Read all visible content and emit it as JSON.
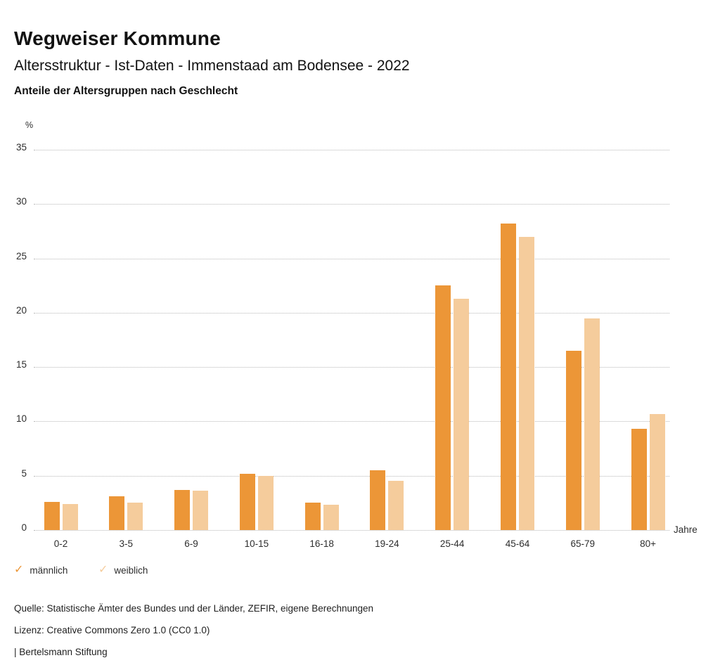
{
  "header": {
    "title": "Wegweiser Kommune",
    "subtitle": "Altersstruktur - Ist-Daten - Immenstaad am Bodensee - 2022",
    "chart_heading": "Anteile der Altersgruppen nach Geschlecht"
  },
  "icons": {
    "checkmark": "✓"
  },
  "chart_data": {
    "type": "bar",
    "title": "Anteile der Altersgruppen nach Geschlecht",
    "y_axis_unit": "%",
    "x_axis_unit": "Jahre",
    "ylim": [
      0,
      35
    ],
    "ytick_step": 5,
    "grid": "horizontal-dotted",
    "legend_position": "bottom-left",
    "categories": [
      "0-2",
      "3-5",
      "6-9",
      "10-15",
      "16-18",
      "19-24",
      "25-44",
      "45-64",
      "65-79",
      "80+"
    ],
    "series": [
      {
        "name": "männlich",
        "color": "#EC9637",
        "values": [
          2.6,
          3.1,
          3.7,
          5.2,
          2.5,
          5.5,
          22.5,
          28.2,
          16.5,
          9.3
        ]
      },
      {
        "name": "weiblich",
        "color": "#F5CC9C",
        "values": [
          2.4,
          2.5,
          3.6,
          5.0,
          2.3,
          4.5,
          21.3,
          27.0,
          19.5,
          10.7
        ]
      }
    ]
  },
  "footer": {
    "source": "Quelle: Statistische Ämter des Bundes und der Länder, ZEFIR, eigene Berechnungen",
    "license": "Lizenz: Creative Commons Zero 1.0 (CC0 1.0)",
    "attribution": "| Bertelsmann Stiftung"
  }
}
